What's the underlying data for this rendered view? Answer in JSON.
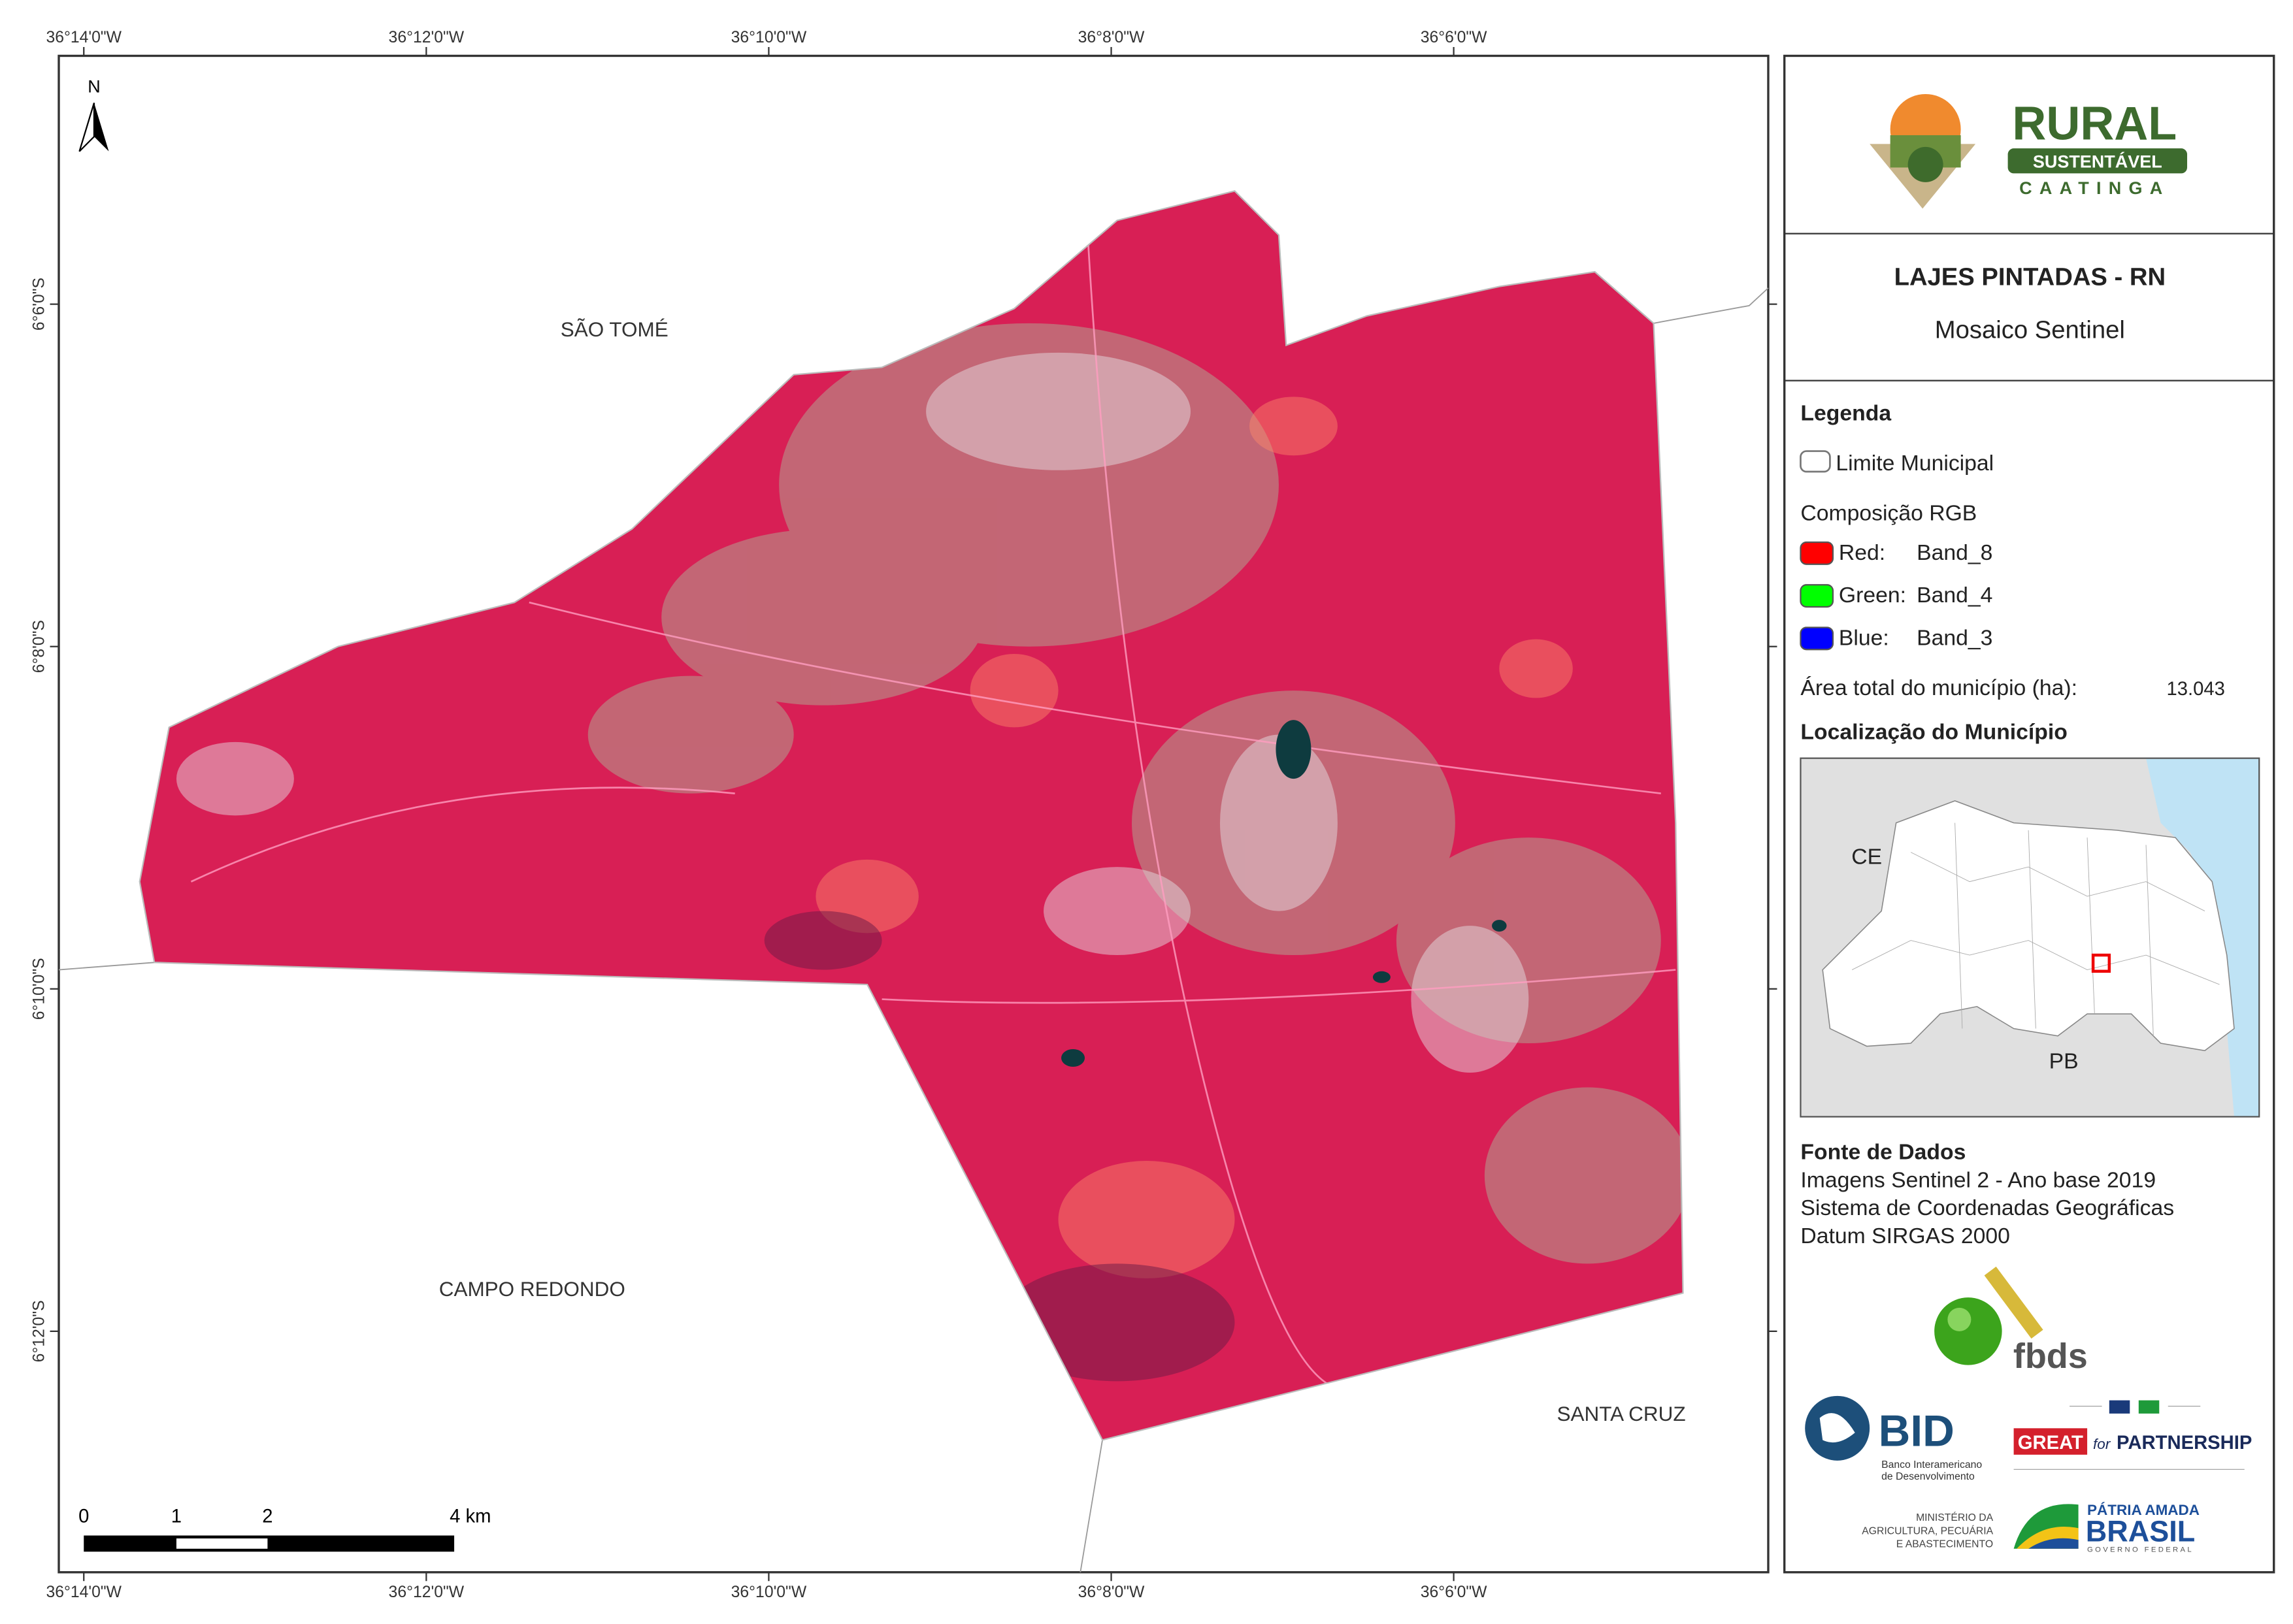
{
  "graticule": {
    "lon_labels": [
      "36°14'0\"W",
      "36°12'0\"W",
      "36°10'0\"W",
      "36°8'0\"W",
      "36°6'0\"W"
    ],
    "lat_labels": [
      "6°6'0\"S",
      "6°8'0\"S",
      "6°10'0\"S",
      "6°12'0\"S"
    ]
  },
  "map": {
    "north": "N",
    "places": [
      "SÃO TOMÉ",
      "CAMPO REDONDO",
      "SANTA CRUZ"
    ],
    "scale_bar": [
      "0",
      "1",
      "2",
      "4 km"
    ]
  },
  "panel": {
    "logo": {
      "line1": "RURAL",
      "line2": "SUSTENTÁVEL",
      "line3": "CAATINGA"
    },
    "title": "LAJES PINTADAS - RN",
    "subtitle": "Mosaico Sentinel",
    "legend": {
      "heading": "Legenda",
      "boundary": "Limite Municipal",
      "rgb_heading": "Composição RGB",
      "bands": [
        {
          "channel": "Red:",
          "band": "Band_8",
          "color": "#ff0000"
        },
        {
          "channel": "Green:",
          "band": "Band_4",
          "color": "#00ff00"
        },
        {
          "channel": "Blue:",
          "band": "Band_3",
          "color": "#0000ff"
        }
      ],
      "area_label": "Área total do município (ha):",
      "area_value": "13.043"
    },
    "location": {
      "heading": "Localização do Município",
      "states": [
        "CE",
        "PB"
      ]
    },
    "sources": {
      "heading": "Fonte de Dados",
      "lines": [
        "Imagens Sentinel 2 - Ano base 2019",
        "Sistema de Coordenadas Geográficas",
        "Datum SIRGAS 2000"
      ]
    },
    "partners": {
      "fbds": "fbds",
      "bid": "BID",
      "bid_sub": [
        "Banco Interamericano",
        "de Desenvolvimento"
      ],
      "great": "GREAT",
      "great_for": "for",
      "great_partnership": "PARTNERSHIP",
      "ministry": [
        "MINISTÉRIO DA",
        "AGRICULTURA, PECUÁRIA",
        "E ABASTECIMENTO"
      ],
      "brasil_top": "PÁTRIA AMADA",
      "brasil": "BRASIL",
      "brasil_sub": "GOVERNO FEDERAL"
    }
  }
}
